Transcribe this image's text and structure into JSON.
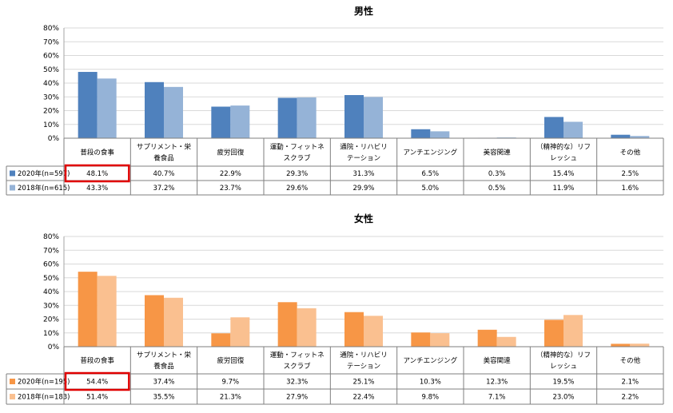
{
  "chart_data": [
    {
      "type": "bar",
      "title": "男性",
      "categories": [
        "普段の食事",
        "サプリメント・栄養食品",
        "疲労回復",
        "運動・フィットネスクラブ",
        "通院・リハビリテーション",
        "アンチエンジング",
        "美容関連",
        "（精神的な）リフレッシュ",
        "その他"
      ],
      "category_lines": [
        [
          "普段の食事"
        ],
        [
          "サプリメント・栄",
          "養食品"
        ],
        [
          "疲労回復"
        ],
        [
          "運動・フィットネ",
          "スクラブ"
        ],
        [
          "通院・リハビリ",
          "テーション"
        ],
        [
          "アンチエンジング"
        ],
        [
          "美容関連"
        ],
        [
          "（精神的な）リフ",
          "レッシュ"
        ],
        [
          "その他"
        ]
      ],
      "series": [
        {
          "name": "2020年(n=597)",
          "color": "#4f81bd",
          "values": [
            48.1,
            40.7,
            22.9,
            29.3,
            31.3,
            6.5,
            0.3,
            15.4,
            2.5
          ],
          "labels": [
            "48.1%",
            "40.7%",
            "22.9%",
            "29.3%",
            "31.3%",
            "6.5%",
            "0.3%",
            "15.4%",
            "2.5%"
          ]
        },
        {
          "name": "2018年(n=615)",
          "color": "#95b3d7",
          "values": [
            43.3,
            37.2,
            23.7,
            29.6,
            29.9,
            5.0,
            0.5,
            11.9,
            1.6
          ],
          "labels": [
            "43.3%",
            "37.2%",
            "23.7%",
            "29.6%",
            "29.9%",
            "5.0%",
            "0.5%",
            "11.9%",
            "1.6%"
          ]
        }
      ],
      "ylim": [
        0,
        80
      ],
      "yticks": [
        "0%",
        "10%",
        "20%",
        "30%",
        "40%",
        "50%",
        "60%",
        "70%",
        "80%"
      ],
      "grid": true,
      "highlight": {
        "series": 0,
        "category": 0,
        "color": "#e00000"
      }
    },
    {
      "type": "bar",
      "title": "女性",
      "categories": [
        "普段の食事",
        "サプリメント・栄養食品",
        "疲労回復",
        "運動・フィットネスクラブ",
        "通院・リハビリテーション",
        "アンチエンジング",
        "美容関連",
        "（精神的な）リフレッシュ",
        "その他"
      ],
      "category_lines": [
        [
          "普段の食事"
        ],
        [
          "サプリメント・栄",
          "養食品"
        ],
        [
          "疲労回復"
        ],
        [
          "運動・フィットネ",
          "スクラブ"
        ],
        [
          "通院・リハビリ",
          "テーション"
        ],
        [
          "アンチエンジング"
        ],
        [
          "美容関連"
        ],
        [
          "（精神的な）リフ",
          "レッシュ"
        ],
        [
          "その他"
        ]
      ],
      "series": [
        {
          "name": "2020年(n=195)",
          "color": "#f79646",
          "values": [
            54.4,
            37.4,
            9.7,
            32.3,
            25.1,
            10.3,
            12.3,
            19.5,
            2.1
          ],
          "labels": [
            "54.4%",
            "37.4%",
            "9.7%",
            "32.3%",
            "25.1%",
            "10.3%",
            "12.3%",
            "19.5%",
            "2.1%"
          ]
        },
        {
          "name": "2018年(n=183)",
          "color": "#fac090",
          "values": [
            51.4,
            35.5,
            21.3,
            27.9,
            22.4,
            9.8,
            7.1,
            23.0,
            2.2
          ],
          "labels": [
            "51.4%",
            "35.5%",
            "21.3%",
            "27.9%",
            "22.4%",
            "9.8%",
            "7.1%",
            "23.0%",
            "2.2%"
          ]
        }
      ],
      "ylim": [
        0,
        80
      ],
      "yticks": [
        "0%",
        "10%",
        "20%",
        "30%",
        "40%",
        "50%",
        "60%",
        "70%",
        "80%"
      ],
      "grid": true,
      "highlight": {
        "series": 0,
        "category": 0,
        "color": "#e00000"
      }
    }
  ]
}
